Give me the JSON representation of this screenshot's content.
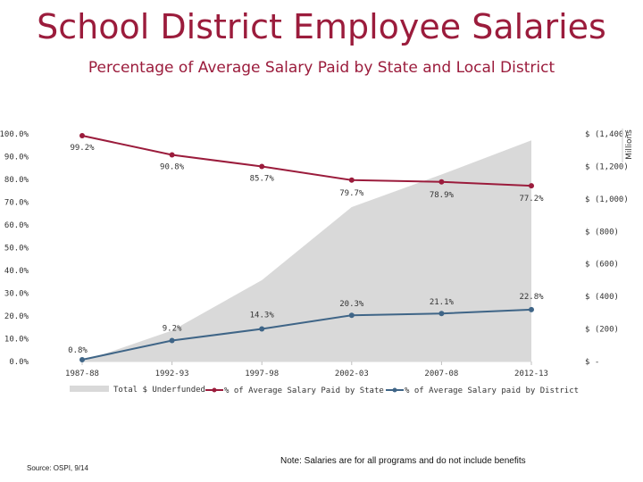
{
  "header": {
    "title": "School District Employee Salaries",
    "subtitle": "Percentage of Average Salary Paid by State  and Local District"
  },
  "footer": {
    "source": "Source: OSPI, 9/14",
    "note": "Note: Salaries are for all programs and do not include benefits"
  },
  "colors": {
    "state": "#9b1c3c",
    "district": "#3f6587",
    "underfunded": "#d9d9d9",
    "title": "#9b1c3c"
  },
  "chart_data": {
    "type": "line",
    "categories": [
      "1987-88",
      "1992-93",
      "1997-98",
      "2002-03",
      "2007-08",
      "2012-13"
    ],
    "y_left": {
      "range": [
        0,
        100
      ],
      "ticks": [
        0,
        10,
        20,
        30,
        40,
        50,
        60,
        70,
        80,
        90,
        100
      ],
      "tick_labels": [
        "0.0%",
        "10.0%",
        "20.0%",
        "30.0%",
        "40.0%",
        "50.0%",
        "60.0%",
        "70.0%",
        "80.0%",
        "90.0%",
        "100.0%"
      ]
    },
    "y_right": {
      "label": "Millions",
      "range": [
        0,
        1400
      ],
      "ticks": [
        0,
        200,
        400,
        600,
        800,
        1000,
        1200,
        1400
      ],
      "tick_labels": [
        "$ -",
        "$ (200)",
        "$ (400)",
        "$ (600)",
        "$ (800)",
        "$ (1,000)",
        "$ (1,200)",
        "$ (1,400)"
      ]
    },
    "series": [
      {
        "name": "Total $ Underfunded",
        "type": "area",
        "axis": "right",
        "values": [
          0,
          190,
          500,
          950,
          1150,
          1360
        ],
        "color": "#d9d9d9"
      },
      {
        "name": "% of Average Salary Paid by State",
        "type": "line",
        "axis": "left",
        "values": [
          99.2,
          90.8,
          85.7,
          79.7,
          78.9,
          77.2
        ],
        "data_labels": [
          "99.2%",
          "90.8%",
          "85.7%",
          "79.7%",
          "78.9%",
          "77.2%"
        ],
        "color": "#9b1c3c"
      },
      {
        "name": "% of Average Salary paid by District",
        "type": "line",
        "axis": "left",
        "values": [
          0.8,
          9.2,
          14.3,
          20.3,
          21.1,
          22.8
        ],
        "data_labels": [
          "0.8%",
          "9.2%",
          "14.3%",
          "20.3%",
          "21.1%",
          "22.8%"
        ],
        "color": "#3f6587"
      }
    ],
    "legend": "bottom",
    "grid": false
  }
}
